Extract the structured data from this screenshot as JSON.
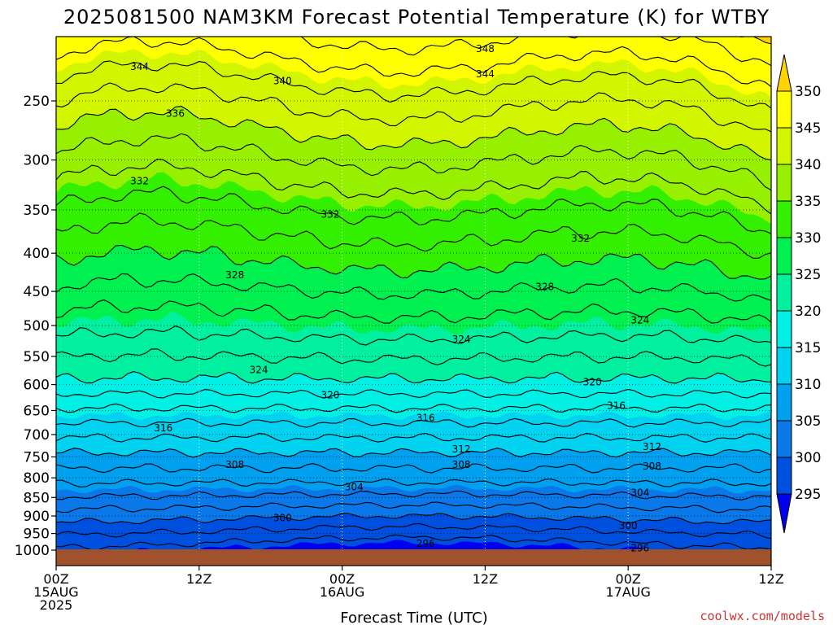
{
  "chart_data": {
    "type": "heatmap",
    "title": "2025081500 NAM3KM Forecast Potential Temperature (K) for WTBY",
    "xlabel": "Forecast Time (UTC)",
    "ylabel": "",
    "x_ticks": [
      {
        "hour": 0,
        "lines": [
          "00Z",
          "15AUG",
          "2025"
        ]
      },
      {
        "hour": 12,
        "lines": [
          "12Z"
        ]
      },
      {
        "hour": 24,
        "lines": [
          "00Z",
          "16AUG"
        ]
      },
      {
        "hour": 36,
        "lines": [
          "12Z"
        ]
      },
      {
        "hour": 48,
        "lines": [
          "00Z",
          "17AUG"
        ]
      },
      {
        "hour": 60,
        "lines": [
          "12Z"
        ]
      }
    ],
    "xlim_hours": [
      0,
      60
    ],
    "y_ticks_hPa": [
      250,
      300,
      350,
      400,
      450,
      500,
      550,
      600,
      650,
      700,
      750,
      800,
      850,
      900,
      950,
      1000
    ],
    "ylim_hPa": [
      200,
      1000
    ],
    "y_scale": "log",
    "colorbar": {
      "levels": [
        295,
        300,
        305,
        310,
        315,
        320,
        325,
        330,
        335,
        340,
        345,
        350
      ],
      "labels": [
        "295",
        "300",
        "305",
        "310",
        "315",
        "320",
        "325",
        "330",
        "335",
        "340",
        "345",
        "350"
      ],
      "colors": [
        "#0000f0",
        "#0050e0",
        "#0a78e8",
        "#00a0f0",
        "#00d2f0",
        "#00f0e6",
        "#00f0a0",
        "#00f050",
        "#32f000",
        "#96f000",
        "#d2f500",
        "#ffff00",
        "#ffd200"
      ]
    },
    "ground_color": "#a0522d",
    "contour_interval": 2,
    "series": [
      {
        "x_hours": [
          0,
          6,
          12,
          18,
          24,
          30,
          36,
          42,
          48,
          54,
          60
        ],
        "theta_at_1000hPa": [
          297,
          296,
          295,
          295,
          295,
          295,
          296,
          296,
          295,
          295,
          296
        ]
      },
      {
        "x_hours": [
          0,
          6,
          12,
          18,
          24,
          30,
          36,
          42,
          48,
          54,
          60
        ],
        "theta_at_700hPa": [
          311,
          311,
          311,
          311,
          311,
          311,
          311,
          312,
          312,
          312,
          313
        ]
      },
      {
        "x_hours": [
          0,
          6,
          12,
          18,
          24,
          30,
          36,
          42,
          48,
          54,
          60
        ],
        "theta_at_500hPa": [
          322,
          325,
          326,
          326,
          326,
          324,
          324,
          323,
          324,
          325,
          326
        ]
      },
      {
        "x_hours": [
          0,
          6,
          12,
          18,
          24,
          30,
          36,
          42,
          48,
          54,
          60
        ],
        "theta_at_300hPa": [
          338,
          337,
          336,
          334,
          336,
          337,
          336,
          336,
          335,
          336,
          337
        ]
      }
    ],
    "contour_labels": [
      {
        "text": "348",
        "hour": 36,
        "p": 213
      },
      {
        "text": "344",
        "hour": 7,
        "p": 225
      },
      {
        "text": "344",
        "hour": 36,
        "p": 230
      },
      {
        "text": "340",
        "hour": 19,
        "p": 235
      },
      {
        "text": "336",
        "hour": 10,
        "p": 260
      },
      {
        "text": "332",
        "hour": 7,
        "p": 320
      },
      {
        "text": "332",
        "hour": 23,
        "p": 355
      },
      {
        "text": "332",
        "hour": 44,
        "p": 382
      },
      {
        "text": "328",
        "hour": 15,
        "p": 428
      },
      {
        "text": "328",
        "hour": 41,
        "p": 444
      },
      {
        "text": "324",
        "hour": 34,
        "p": 522
      },
      {
        "text": "324",
        "hour": 49,
        "p": 492
      },
      {
        "text": "324",
        "hour": 17,
        "p": 573
      },
      {
        "text": "320",
        "hour": 23,
        "p": 620
      },
      {
        "text": "320",
        "hour": 45,
        "p": 595
      },
      {
        "text": "316",
        "hour": 9,
        "p": 686
      },
      {
        "text": "316",
        "hour": 31,
        "p": 665
      },
      {
        "text": "316",
        "hour": 47,
        "p": 640
      },
      {
        "text": "312",
        "hour": 34,
        "p": 732
      },
      {
        "text": "312",
        "hour": 50,
        "p": 727
      },
      {
        "text": "308",
        "hour": 15,
        "p": 768
      },
      {
        "text": "308",
        "hour": 34,
        "p": 768
      },
      {
        "text": "308",
        "hour": 50,
        "p": 772
      },
      {
        "text": "304",
        "hour": 25,
        "p": 823
      },
      {
        "text": "304",
        "hour": 49,
        "p": 838
      },
      {
        "text": "300",
        "hour": 19,
        "p": 905
      },
      {
        "text": "300",
        "hour": 48,
        "p": 927
      },
      {
        "text": "296",
        "hour": 31,
        "p": 980
      },
      {
        "text": "296",
        "hour": 49,
        "p": 994
      }
    ]
  },
  "credit": "coolwx.com/models"
}
